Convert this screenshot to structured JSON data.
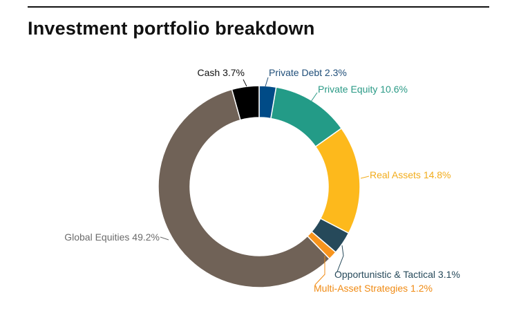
{
  "page": {
    "title": "Investment portfolio breakdown"
  },
  "chart_data": {
    "type": "pie",
    "title": "Investment portfolio breakdown",
    "donut": true,
    "slices": [
      {
        "label": "Private Debt 2.3%",
        "name": "Private Debt",
        "value": 2.3,
        "color": "#004b87"
      },
      {
        "label": "Private Equity 10.6%",
        "name": "Private Equity",
        "value": 10.6,
        "color": "#239b87"
      },
      {
        "label": "Real Assets 14.8%",
        "name": "Real Assets",
        "value": 14.8,
        "color": "#fdb91c"
      },
      {
        "label": "Opportunistic & Tactical 3.1%",
        "name": "Opportunistic & Tactical",
        "value": 3.1,
        "color": "#26495a"
      },
      {
        "label": "Multi-Asset Strategies 1.2%",
        "name": "Multi-Asset Strategies",
        "value": 1.2,
        "color": "#f7941d"
      },
      {
        "label": "Global Equities 49.2%",
        "name": "Global Equities",
        "value": 49.2,
        "color": "#706257"
      },
      {
        "label": "Cash 3.7%",
        "name": "Cash",
        "value": 3.7,
        "color": "#000000"
      }
    ],
    "label_colors": {
      "Private Debt": "#1f4e79",
      "Private Equity": "#2a9a86",
      "Real Assets": "#f2ac1b",
      "Opportunistic & Tactical": "#26495a",
      "Multi-Asset Strategies": "#f08a12",
      "Global Equities": "#6b6b6b",
      "Cash": "#111111"
    }
  }
}
